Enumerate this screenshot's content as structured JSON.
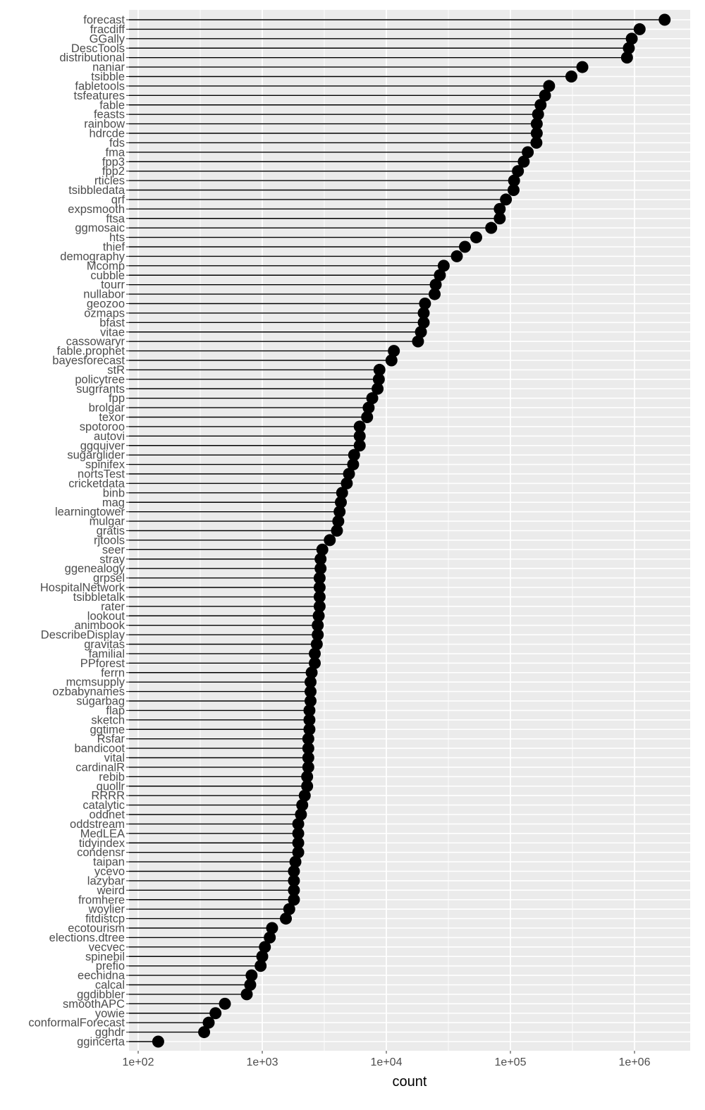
{
  "chart_data": {
    "type": "lollipop",
    "xlabel": "count",
    "ylabel": "",
    "x_scale": "log10",
    "xlim": [
      60,
      3000000
    ],
    "x_ticks": [
      100,
      1000,
      10000,
      100000,
      1000000
    ],
    "x_tick_labels": [
      "1e+02",
      "1e+03",
      "1e+04",
      "1e+05",
      "1e+06"
    ],
    "grid": true,
    "legend": "none",
    "colors": {
      "panel": "#ebebeb",
      "grid": "#ffffff",
      "mark": "#000000",
      "tick_label": "#4d4d4d"
    },
    "points": [
      {
        "name": "forecast",
        "count": 1750000
      },
      {
        "name": "fracdiff",
        "count": 1100000
      },
      {
        "name": "GGally",
        "count": 950000
      },
      {
        "name": "DescTools",
        "count": 900000
      },
      {
        "name": "distributional",
        "count": 870000
      },
      {
        "name": "naniar",
        "count": 380000
      },
      {
        "name": "tsibble",
        "count": 310000
      },
      {
        "name": "fabletools",
        "count": 205000
      },
      {
        "name": "tsfeatures",
        "count": 190000
      },
      {
        "name": "fable",
        "count": 175000
      },
      {
        "name": "feasts",
        "count": 167000
      },
      {
        "name": "rainbow",
        "count": 163000
      },
      {
        "name": "hdrcde",
        "count": 163000
      },
      {
        "name": "fds",
        "count": 162000
      },
      {
        "name": "fma",
        "count": 138000
      },
      {
        "name": "fpp3",
        "count": 128000
      },
      {
        "name": "fpp2",
        "count": 115000
      },
      {
        "name": "rticles",
        "count": 107000
      },
      {
        "name": "tsibbledata",
        "count": 106000
      },
      {
        "name": "qrf",
        "count": 92000
      },
      {
        "name": "expsmooth",
        "count": 82000
      },
      {
        "name": "ftsa",
        "count": 82000
      },
      {
        "name": "ggmosaic",
        "count": 70000
      },
      {
        "name": "hts",
        "count": 53000
      },
      {
        "name": "thief",
        "count": 43000
      },
      {
        "name": "demography",
        "count": 37000
      },
      {
        "name": "Mcomp",
        "count": 29000
      },
      {
        "name": "cubble",
        "count": 27000
      },
      {
        "name": "tourr",
        "count": 25000
      },
      {
        "name": "nullabor",
        "count": 24500
      },
      {
        "name": "geozoo",
        "count": 20500
      },
      {
        "name": "ozmaps",
        "count": 20000
      },
      {
        "name": "bfast",
        "count": 20000
      },
      {
        "name": "vitae",
        "count": 19000
      },
      {
        "name": "cassowaryr",
        "count": 18000
      },
      {
        "name": "fable.prophet",
        "count": 11500
      },
      {
        "name": "bayesforecast",
        "count": 11000
      },
      {
        "name": "stR",
        "count": 8800
      },
      {
        "name": "policytree",
        "count": 8700
      },
      {
        "name": "sugrrants",
        "count": 8500
      },
      {
        "name": "fpp",
        "count": 7700
      },
      {
        "name": "brolgar",
        "count": 7200
      },
      {
        "name": "texor",
        "count": 7000
      },
      {
        "name": "spotoroo",
        "count": 6100
      },
      {
        "name": "autovi",
        "count": 6100
      },
      {
        "name": "ggquiver",
        "count": 6100
      },
      {
        "name": "sugarglider",
        "count": 5500
      },
      {
        "name": "spinifex",
        "count": 5400
      },
      {
        "name": "nortsTest",
        "count": 5000
      },
      {
        "name": "cricketdata",
        "count": 4800
      },
      {
        "name": "binb",
        "count": 4400
      },
      {
        "name": "mag",
        "count": 4300
      },
      {
        "name": "learningtower",
        "count": 4200
      },
      {
        "name": "mulgar",
        "count": 4100
      },
      {
        "name": "gratis",
        "count": 4000
      },
      {
        "name": "rjtools",
        "count": 3500
      },
      {
        "name": "seer",
        "count": 3050
      },
      {
        "name": "stray",
        "count": 2950
      },
      {
        "name": "ggenealogy",
        "count": 2950
      },
      {
        "name": "grpsel",
        "count": 2900
      },
      {
        "name": "HospitalNetwork",
        "count": 2900
      },
      {
        "name": "tsibbletalk",
        "count": 2900
      },
      {
        "name": "rater",
        "count": 2900
      },
      {
        "name": "lookout",
        "count": 2850
      },
      {
        "name": "animbook",
        "count": 2800
      },
      {
        "name": "DescribeDisplay",
        "count": 2800
      },
      {
        "name": "gravitas",
        "count": 2750
      },
      {
        "name": "familial",
        "count": 2650
      },
      {
        "name": "PPforest",
        "count": 2650
      },
      {
        "name": "ferrn",
        "count": 2500
      },
      {
        "name": "mcmsupply",
        "count": 2450
      },
      {
        "name": "ozbabynames",
        "count": 2450
      },
      {
        "name": "sugarbag",
        "count": 2450
      },
      {
        "name": "flap",
        "count": 2400
      },
      {
        "name": "sketch",
        "count": 2400
      },
      {
        "name": "ggtime",
        "count": 2400
      },
      {
        "name": "Rsfar",
        "count": 2350
      },
      {
        "name": "bandicoot",
        "count": 2350
      },
      {
        "name": "vital",
        "count": 2350
      },
      {
        "name": "cardinalR",
        "count": 2350
      },
      {
        "name": "rebib",
        "count": 2300
      },
      {
        "name": "quollr",
        "count": 2300
      },
      {
        "name": "RRRR",
        "count": 2200
      },
      {
        "name": "catalytic",
        "count": 2100
      },
      {
        "name": "oddnet",
        "count": 2050
      },
      {
        "name": "oddstream",
        "count": 1950
      },
      {
        "name": "MedLEA",
        "count": 1950
      },
      {
        "name": "tidyindex",
        "count": 1950
      },
      {
        "name": "condensr",
        "count": 1950
      },
      {
        "name": "taipan",
        "count": 1850
      },
      {
        "name": "ycevo",
        "count": 1800
      },
      {
        "name": "lazybar",
        "count": 1800
      },
      {
        "name": "weird",
        "count": 1800
      },
      {
        "name": "fromhere",
        "count": 1800
      },
      {
        "name": "woylier",
        "count": 1650
      },
      {
        "name": "fitdistcp",
        "count": 1550
      },
      {
        "name": "ecotourism",
        "count": 1200
      },
      {
        "name": "elections.dtree",
        "count": 1150
      },
      {
        "name": "vecvec",
        "count": 1050
      },
      {
        "name": "spinebil",
        "count": 1000
      },
      {
        "name": "prefio",
        "count": 970
      },
      {
        "name": "eechidna",
        "count": 820
      },
      {
        "name": "calcal",
        "count": 800
      },
      {
        "name": "ggdibbler",
        "count": 750
      },
      {
        "name": "smoothAPC",
        "count": 500
      },
      {
        "name": "yowie",
        "count": 420
      },
      {
        "name": "conformalForecast",
        "count": 370
      },
      {
        "name": "gghdr",
        "count": 340
      },
      {
        "name": "ggincerta",
        "count": 145
      }
    ]
  }
}
